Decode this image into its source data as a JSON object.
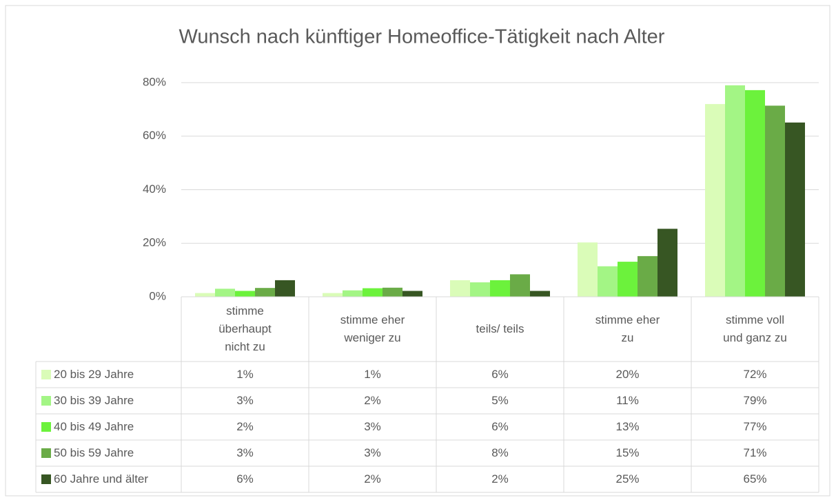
{
  "chart_data": {
    "type": "bar",
    "title": "Wunsch nach künftiger Homeoffice-Tätigkeit nach Alter",
    "categories": [
      "stimme überhaupt nicht zu",
      "stimme eher weniger zu",
      "teils/ teils",
      "stimme eher zu",
      "stimme voll und ganz zu"
    ],
    "series": [
      {
        "name": "20 bis 29 Jahre",
        "color": "#dafcb8",
        "values": [
          1.4,
          1.4,
          6.2,
          20.3,
          72.0
        ],
        "value_labels": [
          "1%",
          "1%",
          "6%",
          "20%",
          "72%"
        ]
      },
      {
        "name": "30 bis 39 Jahre",
        "color": "#a3f585",
        "values": [
          3.0,
          2.4,
          5.4,
          11.4,
          79.0
        ],
        "value_labels": [
          "3%",
          "2%",
          "5%",
          "11%",
          "79%"
        ]
      },
      {
        "name": "40 bis 49 Jahre",
        "color": "#6cf23c",
        "values": [
          2.2,
          3.2,
          6.2,
          13.1,
          77.2
        ],
        "value_labels": [
          "2%",
          "3%",
          "6%",
          "13%",
          "77%"
        ]
      },
      {
        "name": "50 bis 59 Jahre",
        "color": "#6aab47",
        "values": [
          3.3,
          3.4,
          8.4,
          15.2,
          71.4
        ],
        "value_labels": [
          "3%",
          "3%",
          "8%",
          "15%",
          "71%"
        ]
      },
      {
        "name": "60 Jahre und älter",
        "color": "#375623",
        "values": [
          6.2,
          2.2,
          2.2,
          25.4,
          65.1
        ],
        "value_labels": [
          "6%",
          "2%",
          "2%",
          "25%",
          "65%"
        ]
      }
    ],
    "ylim": [
      0,
      80
    ],
    "yticks": [
      {
        "value": 0,
        "label": "0%"
      },
      {
        "value": 20,
        "label": "20%"
      },
      {
        "value": 40,
        "label": "40%"
      },
      {
        "value": 60,
        "label": "60%"
      },
      {
        "value": 80,
        "label": "80%"
      }
    ],
    "grid": true
  }
}
